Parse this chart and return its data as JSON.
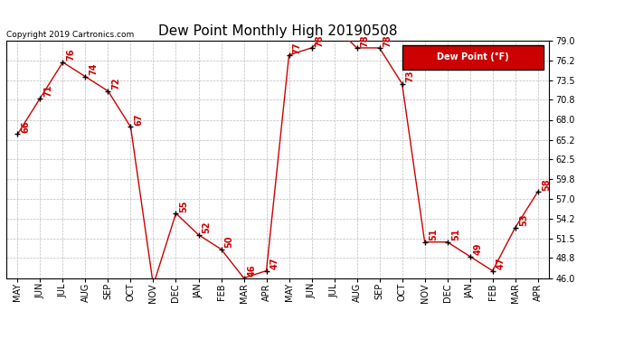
{
  "title": "Dew Point Monthly High 20190508",
  "copyright": "Copyright 2019 Cartronics.com",
  "legend_label": "Dew Point (°F)",
  "x_labels": [
    "MAY",
    "JUN",
    "JUL",
    "AUG",
    "SEP",
    "OCT",
    "NOV",
    "DEC",
    "JAN",
    "FEB",
    "MAR",
    "APR",
    "MAY",
    "JUN",
    "JUL",
    "AUG",
    "SEP",
    "OCT",
    "NOV",
    "DEC",
    "JAN",
    "FEB",
    "MAR",
    "APR"
  ],
  "y_values": [
    66,
    71,
    76,
    74,
    72,
    67,
    45,
    55,
    52,
    50,
    46,
    47,
    77,
    78,
    81,
    78,
    78,
    73,
    51,
    51,
    49,
    47,
    53,
    58
  ],
  "y_ticks": [
    46.0,
    48.8,
    51.5,
    54.2,
    57.0,
    59.8,
    62.5,
    65.2,
    68.0,
    70.8,
    73.5,
    76.2,
    79.0
  ],
  "ylim": [
    46.0,
    79.0
  ],
  "line_color": "#cc0000",
  "marker_color": "#000000",
  "label_color": "#cc0000",
  "background_color": "#ffffff",
  "grid_color": "#bbbbbb",
  "legend_bg": "#cc0000",
  "legend_text_color": "#ffffff",
  "title_fontsize": 11,
  "tick_fontsize": 7,
  "label_fontsize": 7,
  "copyright_fontsize": 6.5
}
